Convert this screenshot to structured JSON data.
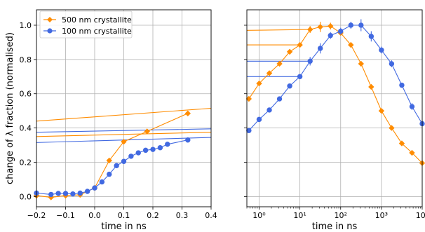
{
  "chart_data": [
    {
      "type": "line",
      "panel": "left",
      "xscale": "linear",
      "xlabel": "time in ns",
      "ylabel": "change of λ fraction (normalised)",
      "xlim": [
        -0.2,
        0.4
      ],
      "ylim": [
        -0.06,
        1.09
      ],
      "xticks": [
        -0.2,
        -0.1,
        0.0,
        0.1,
        0.2,
        0.3,
        0.4
      ],
      "xticklabels": [
        "−0.2",
        "−0.1",
        "0.0",
        "0.1",
        "0.2",
        "0.3",
        "0.4"
      ],
      "yticks": [
        0.0,
        0.2,
        0.4,
        0.6,
        0.8,
        1.0
      ],
      "yticklabels": [
        "0.0",
        "0.2",
        "0.4",
        "0.6",
        "0.8",
        "1.0"
      ],
      "grid": true,
      "legend": {
        "position": "top-left"
      },
      "series": [
        {
          "name": "500 nm crystallite",
          "color": "#ff8c00",
          "marker": "diamond",
          "x": [
            -0.2,
            -0.15,
            -0.1,
            -0.05,
            0.0,
            0.05,
            0.1,
            0.18,
            0.32
          ],
          "y": [
            0.005,
            -0.005,
            0.005,
            0.01,
            0.05,
            0.21,
            0.32,
            0.38,
            0.485
          ],
          "err": [
            0.006,
            0.006,
            0.006,
            0.006,
            0.006,
            0.008,
            0.01,
            0.012,
            0.015
          ]
        },
        {
          "name": "100 nm crystallite",
          "color": "#4169e1",
          "marker": "circle",
          "x": [
            -0.2,
            -0.15,
            -0.125,
            -0.1,
            -0.075,
            -0.05,
            -0.025,
            0.0,
            0.025,
            0.05,
            0.075,
            0.1,
            0.125,
            0.15,
            0.175,
            0.2,
            0.225,
            0.25,
            0.32
          ],
          "y": [
            0.02,
            0.012,
            0.018,
            0.018,
            0.015,
            0.02,
            0.03,
            0.05,
            0.085,
            0.13,
            0.18,
            0.205,
            0.235,
            0.255,
            0.27,
            0.275,
            0.285,
            0.305,
            0.33
          ],
          "err": [
            0.006,
            0.006,
            0.006,
            0.006,
            0.006,
            0.006,
            0.006,
            0.006,
            0.006,
            0.008,
            0.008,
            0.008,
            0.008,
            0.008,
            0.01,
            0.01,
            0.012,
            0.014,
            0.015
          ]
        }
      ],
      "reference_lines": [
        {
          "color": "#ff8c00",
          "x": [
            -0.2,
            0.4
          ],
          "y": [
            0.44,
            0.515
          ]
        },
        {
          "color": "#ff8c00",
          "x": [
            -0.2,
            0.4
          ],
          "y": [
            0.35,
            0.375
          ]
        },
        {
          "color": "#4169e1",
          "x": [
            -0.2,
            0.4
          ],
          "y": [
            0.375,
            0.395
          ]
        },
        {
          "color": "#4169e1",
          "x": [
            -0.2,
            0.4
          ],
          "y": [
            0.315,
            0.345
          ]
        }
      ]
    },
    {
      "type": "line",
      "panel": "right",
      "xscale": "log",
      "xlabel": "time in ns",
      "xlim": [
        0.5,
        10000
      ],
      "ylim": [
        -0.06,
        1.09
      ],
      "xticks": [
        1,
        10,
        100,
        1000,
        10000
      ],
      "xticklabels": [
        "10⁰",
        "10¹",
        "10²",
        "10³",
        "10⁴"
      ],
      "yticks": [
        0.0,
        0.2,
        0.4,
        0.6,
        0.8,
        1.0
      ],
      "grid": true,
      "series": [
        {
          "name": "500 nm crystallite",
          "color": "#ff8c00",
          "marker": "diamond",
          "x": [
            0.56,
            1.0,
            1.78,
            3.16,
            5.62,
            10,
            17.8,
            31.6,
            56.2,
            100,
            178,
            316,
            562,
            1000,
            1778,
            3162,
            5623,
            10000
          ],
          "y": [
            0.57,
            0.66,
            0.72,
            0.775,
            0.845,
            0.885,
            0.975,
            0.99,
            0.995,
            0.955,
            0.885,
            0.775,
            0.64,
            0.5,
            0.4,
            0.31,
            0.255,
            0.195
          ],
          "err": [
            0.012,
            0.012,
            0.012,
            0.012,
            0.012,
            0.012,
            0.02,
            0.03,
            0.02,
            0.015,
            0.015,
            0.012,
            0.012,
            0.012,
            0.012,
            0.012,
            0.012,
            0.012
          ]
        },
        {
          "name": "100 nm crystallite",
          "color": "#4169e1",
          "marker": "circle",
          "x": [
            0.56,
            1.0,
            1.78,
            3.16,
            5.62,
            10,
            17.8,
            31.6,
            56.2,
            100,
            178,
            316,
            562,
            1000,
            1778,
            3162,
            5623,
            10000
          ],
          "y": [
            0.385,
            0.45,
            0.505,
            0.57,
            0.645,
            0.7,
            0.79,
            0.865,
            0.94,
            0.965,
            1.0,
            1.0,
            0.935,
            0.855,
            0.775,
            0.65,
            0.525,
            0.425
          ],
          "err": [
            0.012,
            0.012,
            0.012,
            0.012,
            0.012,
            0.015,
            0.025,
            0.03,
            0.02,
            0.02,
            0.02,
            0.035,
            0.03,
            0.02,
            0.02,
            0.015,
            0.02,
            0.015
          ]
        }
      ],
      "reference_lines": [
        {
          "color": "#ff8c00",
          "x": [
            0.5,
            17.8
          ],
          "y": [
            0.97,
            0.975
          ]
        },
        {
          "color": "#ff8c00",
          "x": [
            0.5,
            10
          ],
          "y": [
            0.885,
            0.885
          ]
        },
        {
          "color": "#4169e1",
          "x": [
            0.5,
            17.8
          ],
          "y": [
            0.79,
            0.79
          ]
        },
        {
          "color": "#4169e1",
          "x": [
            0.5,
            10
          ],
          "y": [
            0.7,
            0.7
          ]
        }
      ]
    }
  ]
}
